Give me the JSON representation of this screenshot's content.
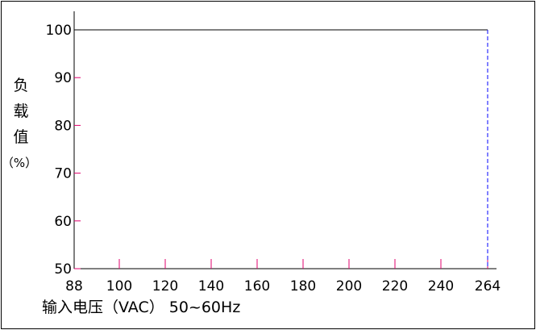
{
  "chart_data": {
    "type": "line",
    "xlabel": "输入电压（VAC） 50~60Hz",
    "ylabel_chars": [
      "负",
      "载",
      "值",
      "（%）"
    ],
    "x_ticks": [
      88,
      100,
      120,
      140,
      160,
      180,
      200,
      220,
      240,
      264
    ],
    "y_ticks": [
      50,
      60,
      70,
      80,
      90,
      100
    ],
    "xlim": [
      88,
      264
    ],
    "ylim": [
      50,
      100
    ],
    "series": [
      {
        "values": [
          {
            "x": 88,
            "y": 100
          },
          {
            "x": 264,
            "y": 100
          }
        ]
      }
    ],
    "reference_line": {
      "x": 264,
      "style": "dashed"
    },
    "colors": {
      "axis": "#000000",
      "line": "#000000",
      "tick_marks": "#e0006e",
      "reference": "#0000ff"
    }
  }
}
